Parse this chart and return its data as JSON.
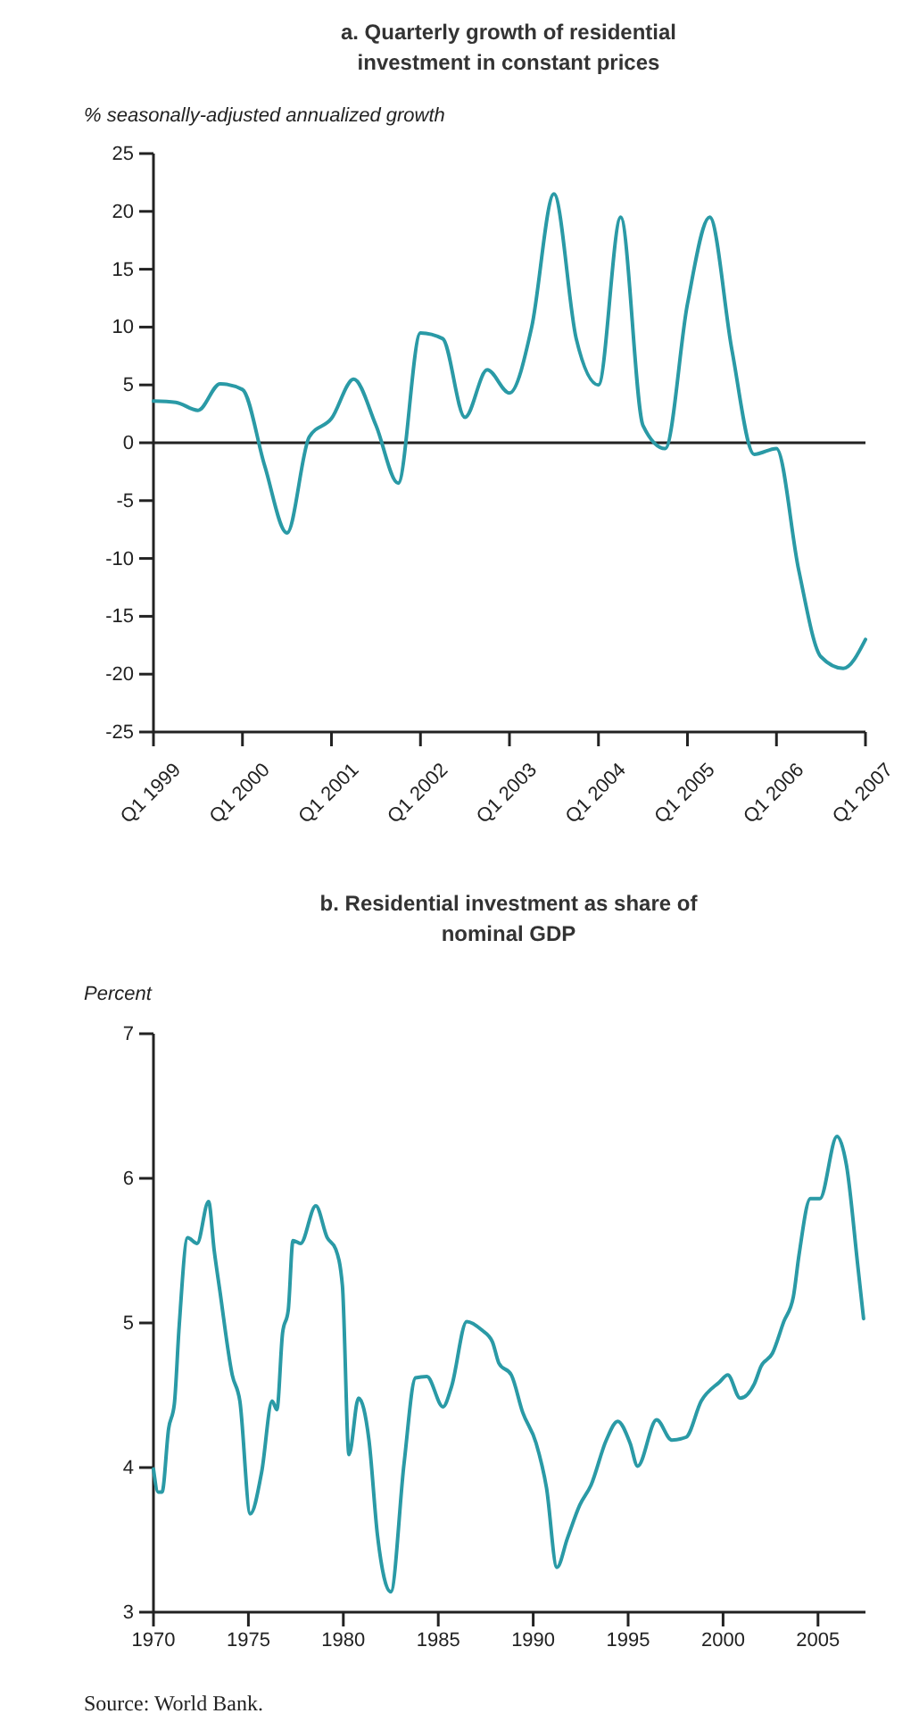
{
  "chart_data": [
    {
      "type": "line",
      "title": "a. Quarterly growth of residential investment in constant prices",
      "ylabel": "% seasonally-adjusted annualized growth",
      "categories": [
        "Q1 1999",
        null,
        null,
        null,
        "Q1 2000",
        null,
        null,
        null,
        "Q1 2001",
        null,
        null,
        null,
        "Q1 2002",
        null,
        null,
        null,
        "Q1 2003",
        null,
        null,
        null,
        "Q1 2004",
        null,
        null,
        null,
        "Q1 2005",
        null,
        null,
        null,
        "Q1 2006",
        null,
        null,
        null,
        "Q1 2007"
      ],
      "ylim": [
        -25,
        25
      ],
      "yticks": [
        -25,
        -20,
        -15,
        -10,
        -5,
        0,
        5,
        10,
        15,
        20,
        25
      ],
      "grid": false,
      "ref_lines": [
        {
          "axis": "y",
          "value": 0,
          "color": "#222222"
        }
      ],
      "series": [
        {
          "color": "#2a9aa6",
          "values": [
            3.6,
            3.5,
            2.8,
            5.1,
            4.6,
            -2,
            -7.8,
            0.5,
            2.1,
            5.5,
            1.5,
            -3.5,
            9.5,
            9,
            2.2,
            6.3,
            4.3,
            10,
            21.5,
            9,
            5,
            19.5,
            1.5,
            -0.5,
            12,
            19.5,
            8,
            -1,
            -0.5,
            -11,
            -18.5,
            -19.5,
            -17
          ]
        }
      ]
    },
    {
      "type": "line",
      "title": "b. Residential investment as share of nominal GDP",
      "ylabel": "Percent",
      "xlim": [
        1970,
        2007.5
      ],
      "xticks": [
        1970,
        1975,
        1980,
        1985,
        1990,
        1995,
        2000,
        2005
      ],
      "ylim": [
        3,
        7
      ],
      "yticks": [
        3,
        4,
        5,
        6,
        7
      ],
      "grid": false,
      "annotations": [
        "Source: World Bank."
      ],
      "series": [
        {
          "color": "#2a9aa6",
          "x": [
            1970.0,
            1970.25,
            1970.45,
            1970.8,
            1971.1,
            1971.35,
            1971.8,
            1972.3,
            1972.9,
            1973.2,
            1973.5,
            1974.15,
            1974.55,
            1975.1,
            1975.7,
            1976.25,
            1976.5,
            1976.8,
            1977.1,
            1977.35,
            1977.75,
            1978.55,
            1979.15,
            1979.6,
            1979.95,
            1980.3,
            1980.8,
            1981.35,
            1981.8,
            1982.5,
            1983.2,
            1983.8,
            1984.4,
            1985.25,
            1985.7,
            1986.5,
            1987.3,
            1987.85,
            1988.2,
            1988.85,
            1989.45,
            1990.15,
            1990.7,
            1991.25,
            1991.8,
            1992.45,
            1993.05,
            1993.85,
            1994.45,
            1995.1,
            1995.5,
            1996.5,
            1997.3,
            1998.05,
            1998.85,
            1999.8,
            2000.25,
            2000.9,
            2001.65,
            2002.0,
            2002.6,
            2003.2,
            2003.7,
            2004.0,
            2004.6,
            2005.1,
            2006.0,
            2006.5,
            2007.1,
            2007.4
          ],
          "values": [
            3.99,
            3.83,
            3.83,
            4.27,
            4.44,
            4.97,
            5.59,
            5.55,
            5.84,
            5.5,
            5.22,
            4.64,
            4.46,
            3.68,
            3.97,
            4.46,
            4.4,
            4.93,
            5.09,
            5.57,
            5.55,
            5.81,
            5.59,
            5.51,
            5.26,
            4.09,
            4.48,
            4.19,
            3.53,
            3.14,
            4.03,
            4.62,
            4.63,
            4.42,
            4.56,
            5.01,
            4.95,
            4.87,
            4.72,
            4.64,
            4.38,
            4.17,
            3.86,
            3.31,
            3.51,
            3.74,
            3.88,
            4.19,
            4.32,
            4.17,
            4.01,
            4.33,
            4.19,
            4.21,
            4.46,
            4.59,
            4.64,
            4.48,
            4.58,
            4.7,
            4.79,
            5.01,
            5.18,
            5.47,
            5.86,
            5.86,
            6.29,
            6.09,
            5.39,
            5.03
          ]
        }
      ]
    }
  ]
}
